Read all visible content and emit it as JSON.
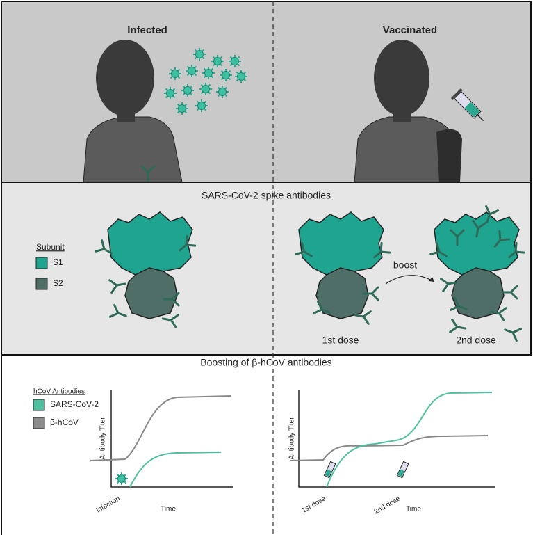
{
  "top": {
    "left_title": "Infected",
    "right_title": "Vaccinated"
  },
  "middle": {
    "title": "SARS-CoV-2 spike antibodies",
    "legend": {
      "title": "Subunit",
      "items": [
        "S1",
        "S2"
      ]
    },
    "boost": "boost",
    "doses": [
      "1st dose",
      "2nd dose"
    ]
  },
  "bottom": {
    "title": "Boosting of β-hCoV antibodies",
    "legend": {
      "title": "hCoV Antibodies",
      "items": [
        "SARS-CoV-2",
        "β-hCoV"
      ]
    },
    "left_chart": {
      "y_label": "Antibody Titer",
      "x_label": "Time",
      "event": "infection"
    },
    "right_chart": {
      "y_label": "Antibody Titer",
      "x_label": "Time",
      "events": [
        "1st dose",
        "2nd dose"
      ]
    }
  }
}
